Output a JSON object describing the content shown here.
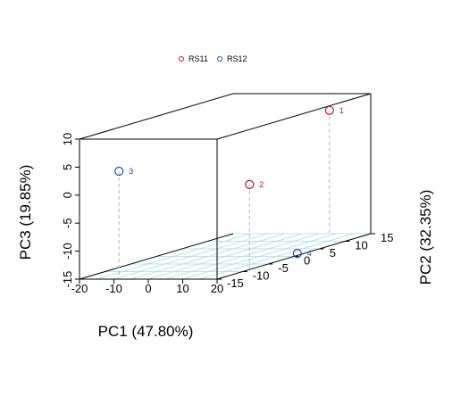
{
  "chart_data": {
    "type": "scatter3d",
    "xlabel": "PC1 (47.80%)",
    "ylabel": "PC2 (32.35%)",
    "zlabel": "PC3 (19.85%)",
    "xlim": [
      -20,
      20
    ],
    "ylim": [
      -15,
      15
    ],
    "zlim": [
      -15,
      10
    ],
    "xticks": [
      "-20",
      "-10",
      "0",
      "10",
      "20"
    ],
    "yticks": [
      "-15",
      "-10",
      "-5",
      "0",
      "5",
      "10",
      "15"
    ],
    "zticks": [
      "-15",
      "-10",
      "-5",
      "0",
      "5",
      "10"
    ],
    "legend": {
      "position": "top",
      "entries": [
        {
          "name": "RS11",
          "color": "#c0182c"
        },
        {
          "name": "RS12",
          "color": "#1f4e96"
        }
      ]
    },
    "series": [
      {
        "name": "RS11",
        "color": "#c0182c",
        "points": [
          {
            "label": "1",
            "x": 8,
            "y": 15,
            "z": 7
          },
          {
            "label": "2",
            "x": 19,
            "y": -8,
            "z": 0
          }
        ]
      },
      {
        "name": "RS12",
        "color": "#1f4e96",
        "points": [
          {
            "label": "3",
            "x": -10,
            "y": -14,
            "z": 4
          },
          {
            "label": "4",
            "x": 18,
            "y": 2,
            "z": -15
          }
        ]
      }
    ]
  }
}
